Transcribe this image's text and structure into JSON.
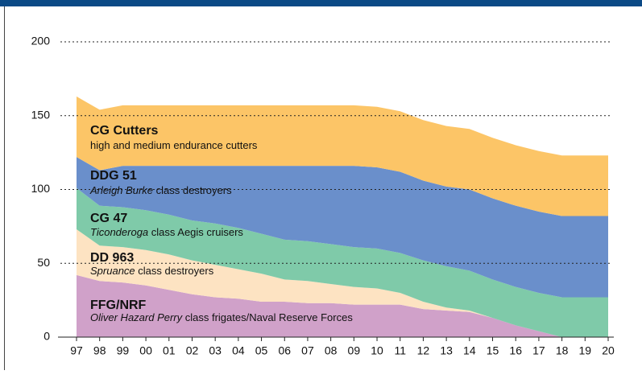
{
  "chart_data": {
    "type": "stacked_area",
    "categories": [
      "97",
      "98",
      "99",
      "00",
      "01",
      "02",
      "03",
      "04",
      "05",
      "06",
      "07",
      "08",
      "09",
      "10",
      "11",
      "12",
      "13",
      "14",
      "15",
      "16",
      "17",
      "18",
      "19",
      "20"
    ],
    "series": [
      {
        "name": "FFG/NRF",
        "color": "#d0a1c9",
        "note_italic": "Oliver Hazard Perry",
        "note": " class frigates/Naval Reserve Forces",
        "values": [
          42,
          38,
          37,
          35,
          32,
          29,
          27,
          26,
          24,
          24,
          23,
          23,
          22,
          22,
          22,
          19,
          18,
          17,
          13,
          8,
          4,
          0,
          0,
          0
        ]
      },
      {
        "name": "DD 963",
        "color": "#fde3c2",
        "note_italic": "Spruance",
        "note": " class destroyers",
        "values": [
          31,
          24,
          24,
          24,
          24,
          23,
          22,
          20,
          19,
          15,
          15,
          13,
          12,
          11,
          8,
          5,
          2,
          1,
          0,
          0,
          0,
          0,
          0,
          0
        ]
      },
      {
        "name": "CG 47",
        "color": "#7fcaa9",
        "note_italic": "Ticonderoga",
        "note": " class Aegis cruisers",
        "values": [
          28,
          27,
          27,
          27,
          27,
          27,
          28,
          28,
          27,
          27,
          27,
          27,
          27,
          27,
          27,
          28,
          28,
          27,
          26,
          26,
          26,
          27,
          27,
          27
        ]
      },
      {
        "name": "DDG 51",
        "color": "#6a8fcb",
        "note_italic": "Arleigh Burke",
        "note": " class destroyers",
        "values": [
          21,
          24,
          28,
          30,
          33,
          37,
          39,
          42,
          46,
          50,
          51,
          53,
          55,
          55,
          55,
          54,
          54,
          55,
          55,
          55,
          55,
          55,
          55,
          55
        ]
      },
      {
        "name": "CG Cutters",
        "color": "#fcc567",
        "note": "high and medium endurance cutters",
        "values": [
          41,
          41,
          41,
          41,
          41,
          41,
          41,
          41,
          41,
          41,
          41,
          41,
          41,
          41,
          41,
          41,
          41,
          41,
          41,
          41,
          41,
          41,
          41,
          41
        ]
      }
    ],
    "ylim": [
      0,
      200
    ],
    "yticks": [
      0,
      50,
      100,
      150,
      200
    ],
    "grid": true
  }
}
